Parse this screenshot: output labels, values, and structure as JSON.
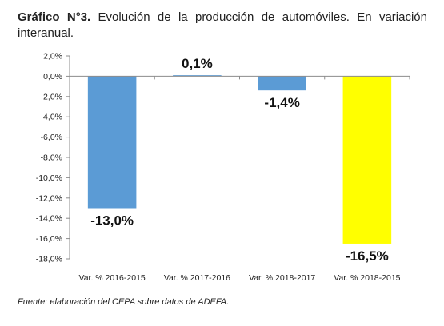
{
  "title_bold": "Gráfico N°3.",
  "title_text": " Evolución de la producción de automóviles. En variación interanual.",
  "source": "Fuente: elaboración del CEPA sobre datos de ADEFA.",
  "chart_data": {
    "type": "bar",
    "title": "Gráfico N°3. Evolución de la producción de automóviles. En variación interanual.",
    "categories": [
      "Var. % 2016-2015",
      "Var. % 2017-2016",
      "Var. % 2018-2017",
      "Var. % 2018-2015"
    ],
    "values": [
      -13.0,
      0.1,
      -1.4,
      -16.5
    ],
    "value_labels": [
      "-13,0%",
      "0,1%",
      "-1,4%",
      "-16,5%"
    ],
    "bar_colors": [
      "#5b9bd5",
      "#5b9bd5",
      "#5b9bd5",
      "#ffff00"
    ],
    "ylim": [
      -18,
      2
    ],
    "yticks": [
      2,
      0,
      -2,
      -4,
      -6,
      -8,
      -10,
      -12,
      -14,
      -16,
      -18
    ],
    "ytick_labels": [
      "2,0%",
      "0,0%",
      "-2,0%",
      "-4,0%",
      "-6,0%",
      "-8,0%",
      "-10,0%",
      "-12,0%",
      "-14,0%",
      "-16,0%",
      "-18,0%"
    ],
    "xlabel": "",
    "ylabel": "",
    "grid": false,
    "legend": "none"
  }
}
